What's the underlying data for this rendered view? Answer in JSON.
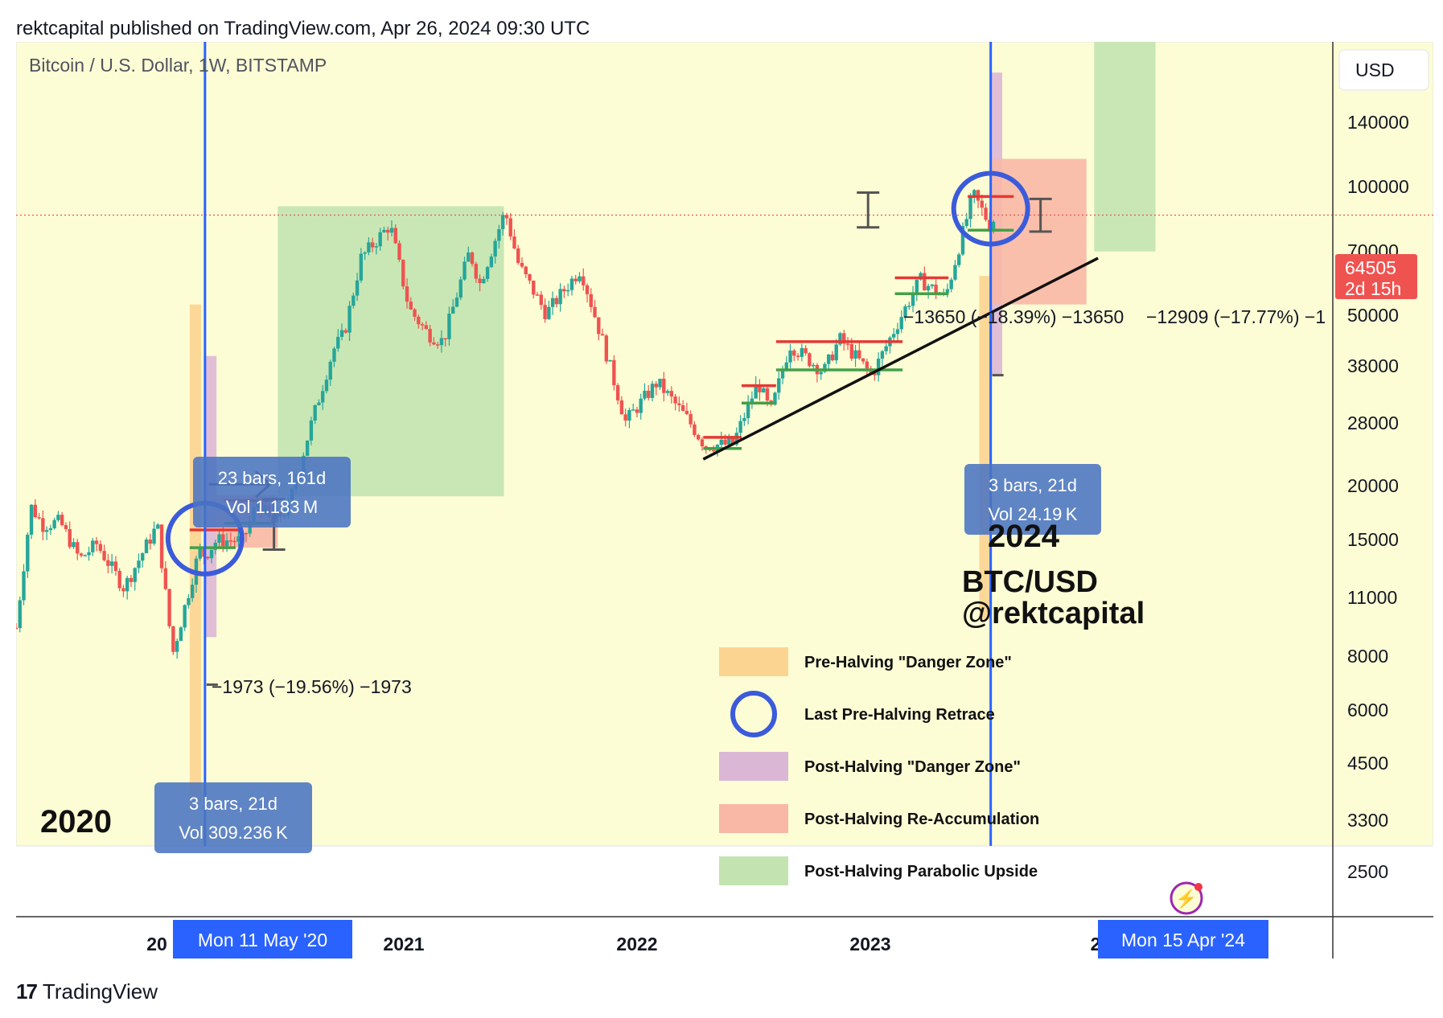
{
  "header": {
    "published": "rektcapital published on TradingView.com, Apr 26, 2024 09:30 UTC"
  },
  "footer": {
    "brand": "TradingView"
  },
  "chart_data": {
    "type": "candlestick",
    "symbol": "Bitcoin / U.S. Dollar, 1W, BITSTAMP",
    "currency": "USD",
    "scale": "log",
    "ylim": [
      2000,
      180000
    ],
    "y_ticks": [
      140000,
      100000,
      70000,
      50000,
      38000,
      28000,
      20000,
      15000,
      11000,
      8000,
      6000,
      4500,
      3300,
      2500
    ],
    "y_tick_labels": [
      "140000",
      "100000",
      "70000",
      "50000",
      "38000",
      "28000",
      "20000",
      "15000",
      "11000",
      "8000",
      "6000",
      "4500",
      "3300",
      "2500"
    ],
    "x_range": [
      "2019-06-01",
      "2025-02-15"
    ],
    "x_ticks": [
      {
        "date": "2020-01-01",
        "label": "20"
      },
      {
        "date": "2021-01-01",
        "label": "2021"
      },
      {
        "date": "2022-01-01",
        "label": "2022"
      },
      {
        "date": "2023-01-01",
        "label": "2023"
      },
      {
        "date": "2024-01-01",
        "label": "2"
      }
    ],
    "price_path": [
      [
        "2019-06-01",
        5600
      ],
      [
        "2019-06-28",
        11500
      ],
      [
        "2019-07-20",
        10300
      ],
      [
        "2019-08-20",
        10500
      ],
      [
        "2019-09-25",
        8400
      ],
      [
        "2019-10-26",
        9200
      ],
      [
        "2019-12-15",
        7100
      ],
      [
        "2020-02-14",
        10300
      ],
      [
        "2020-03-13",
        4800
      ],
      [
        "2020-04-30",
        8800
      ],
      [
        "2020-05-11",
        8600
      ],
      [
        "2020-06-01",
        9400
      ],
      [
        "2020-07-20",
        9400
      ],
      [
        "2020-08-15",
        11900
      ],
      [
        "2020-09-10",
        10400
      ],
      [
        "2020-10-10",
        11400
      ],
      [
        "2020-11-20",
        18500
      ],
      [
        "2020-12-31",
        29000
      ],
      [
        "2021-01-20",
        32000
      ],
      [
        "2021-02-20",
        50000
      ],
      [
        "2021-04-14",
        61000
      ],
      [
        "2021-05-19",
        37000
      ],
      [
        "2021-06-22",
        32000
      ],
      [
        "2021-07-20",
        30500
      ],
      [
        "2021-09-06",
        52000
      ],
      [
        "2021-09-25",
        43000
      ],
      [
        "2021-11-10",
        66000
      ],
      [
        "2021-12-05",
        48000
      ],
      [
        "2022-01-24",
        36000
      ],
      [
        "2022-03-28",
        47000
      ],
      [
        "2022-05-12",
        29000
      ],
      [
        "2022-06-18",
        19000
      ],
      [
        "2022-08-15",
        24000
      ],
      [
        "2022-10-10",
        19200
      ],
      [
        "2022-11-10",
        16500
      ],
      [
        "2022-12-31",
        16600
      ],
      [
        "2023-02-15",
        24000
      ],
      [
        "2023-03-10",
        20000
      ],
      [
        "2023-04-14",
        30000
      ],
      [
        "2023-06-15",
        25500
      ],
      [
        "2023-07-14",
        31000
      ],
      [
        "2023-09-11",
        25000
      ],
      [
        "2023-10-30",
        34500
      ],
      [
        "2023-12-08",
        44000
      ],
      [
        "2024-01-23",
        39500
      ],
      [
        "2024-03-14",
        73000
      ],
      [
        "2024-04-13",
        61000
      ],
      [
        "2024-04-26",
        64505
      ]
    ],
    "last_price": 64505,
    "last_price_label": "64505",
    "countdown": "2d 15h",
    "halvings": [
      {
        "date": "2020-05-11",
        "label": "Mon 11 May '20"
      },
      {
        "date": "2024-04-15",
        "label": "Mon 15 Apr '24"
      }
    ],
    "zones": [
      {
        "kind": "pre_halving",
        "x": [
          "2020-04-13",
          "2020-05-04"
        ],
        "y": [
          2000,
          38000
        ],
        "color": "#fcd491"
      },
      {
        "kind": "post_halving",
        "x": [
          "2020-05-11",
          "2020-06-01"
        ],
        "y": [
          5300,
          28000
        ],
        "color": "#dbb7d6"
      },
      {
        "kind": "re_accumulation",
        "x": [
          "2020-06-01",
          "2020-09-21"
        ],
        "y": [
          9000,
          12300
        ],
        "color": "#f9b8a6"
      },
      {
        "kind": "parabolic",
        "x": [
          "2020-09-21",
          "2021-11-08"
        ],
        "y": [
          12200,
          68000
        ],
        "color": "#c3e4b0"
      },
      {
        "kind": "pre_halving",
        "x": [
          "2024-03-25",
          "2024-04-15"
        ],
        "y": [
          5900,
          45000
        ],
        "color": "#fcd491"
      },
      {
        "kind": "post_halving",
        "x": [
          "2024-04-15",
          "2024-05-06"
        ],
        "y": [
          25000,
          150000
        ],
        "color": "#dbb7d6"
      },
      {
        "kind": "re_accumulation",
        "x": [
          "2024-04-15",
          "2024-10-07"
        ],
        "y": [
          38000,
          90000
        ],
        "color": "#f9b8a6"
      },
      {
        "kind": "parabolic",
        "x": [
          "2024-10-21",
          "2025-02-10"
        ],
        "y": [
          52000,
          180000
        ],
        "color": "#c3e4b0"
      }
    ],
    "levels": [
      {
        "x": [
          "2020-04-13",
          "2020-07-13"
        ],
        "y": 10000,
        "color": "#e53935"
      },
      {
        "x": [
          "2020-06-15",
          "2020-09-21"
        ],
        "y": 11900,
        "color": "#e53935"
      },
      {
        "x": [
          "2020-04-13",
          "2020-07-06"
        ],
        "y": 9000,
        "color": "#43a047"
      },
      {
        "x": [
          "2020-06-15",
          "2020-09-14"
        ],
        "y": 10400,
        "color": "#43a047"
      },
      {
        "x": [
          "2022-11-07",
          "2023-01-16"
        ],
        "y": 17300,
        "color": "#e53935"
      },
      {
        "x": [
          "2022-11-07",
          "2023-01-16"
        ],
        "y": 16200,
        "color": "#43a047"
      },
      {
        "x": [
          "2023-01-16",
          "2023-03-20"
        ],
        "y": 23500,
        "color": "#e53935"
      },
      {
        "x": [
          "2023-01-16",
          "2023-03-20"
        ],
        "y": 21200,
        "color": "#43a047"
      },
      {
        "x": [
          "2023-03-20",
          "2023-11-06"
        ],
        "y": 30500,
        "color": "#e53935"
      },
      {
        "x": [
          "2023-03-20",
          "2023-11-06"
        ],
        "y": 25800,
        "color": "#43a047"
      },
      {
        "x": [
          "2023-10-23",
          "2024-01-29"
        ],
        "y": 44500,
        "color": "#e53935"
      },
      {
        "x": [
          "2023-10-23",
          "2024-01-29"
        ],
        "y": 40500,
        "color": "#43a047"
      },
      {
        "x": [
          "2024-03-04",
          "2024-05-27"
        ],
        "y": 72000,
        "color": "#e53935"
      },
      {
        "x": [
          "2024-03-04",
          "2024-05-27"
        ],
        "y": 59000,
        "color": "#43a047"
      }
    ],
    "trendline": {
      "from": [
        "2022-11-07",
        15200
      ],
      "to": [
        "2024-10-28",
        50000
      ]
    },
    "circles": [
      {
        "date": "2020-05-11",
        "price": 9500
      },
      {
        "date": "2024-04-15",
        "price": 67000
      }
    ],
    "range_markers": [
      {
        "date": "2020-09-14",
        "top": 12000,
        "bottom": 8900
      },
      {
        "date": "2023-09-04",
        "top": 73700,
        "bottom": 60000
      },
      {
        "date": "2024-07-15",
        "top": 71000,
        "bottom": 58500
      }
    ],
    "measures": [
      {
        "line1": "23 bars, 161d",
        "line2": "Vol 1.183 M"
      },
      {
        "line1": "3 bars, 21d",
        "line2": "Vol 309.236 K"
      },
      {
        "line1": "3 bars, 21d",
        "line2": "Vol 24.19 K"
      }
    ],
    "annotations": [
      "−1973 (−19.56%) −1973",
      "−13650 (−18.39%) −13650",
      "−12909 (−17.77%) −1"
    ],
    "labels": {
      "year_2020": "2020",
      "year_2024": "2024",
      "pair": "BTC/USD",
      "author": "@rektcapital"
    },
    "legend": [
      {
        "label": "Pre-Halving \"Danger Zone\"",
        "color": "#fcd491",
        "shape": "rect"
      },
      {
        "label": "Last Pre-Halving Retrace",
        "color": "#3b5bdb",
        "shape": "circle"
      },
      {
        "label": "Post-Halving \"Danger Zone\"",
        "color": "#dbb7d6",
        "shape": "rect"
      },
      {
        "label": "Post-Halving Re-Accumulation",
        "color": "#f9b8a6",
        "shape": "rect"
      },
      {
        "label": "Post-Halving Parabolic Upside",
        "color": "#c3e4b0",
        "shape": "rect"
      }
    ],
    "colors": {
      "background": "#fdfdd5",
      "up": "#26a69a",
      "down": "#ef5350",
      "halving_line": "#2962ff",
      "price_tag": "#ef5350"
    }
  }
}
